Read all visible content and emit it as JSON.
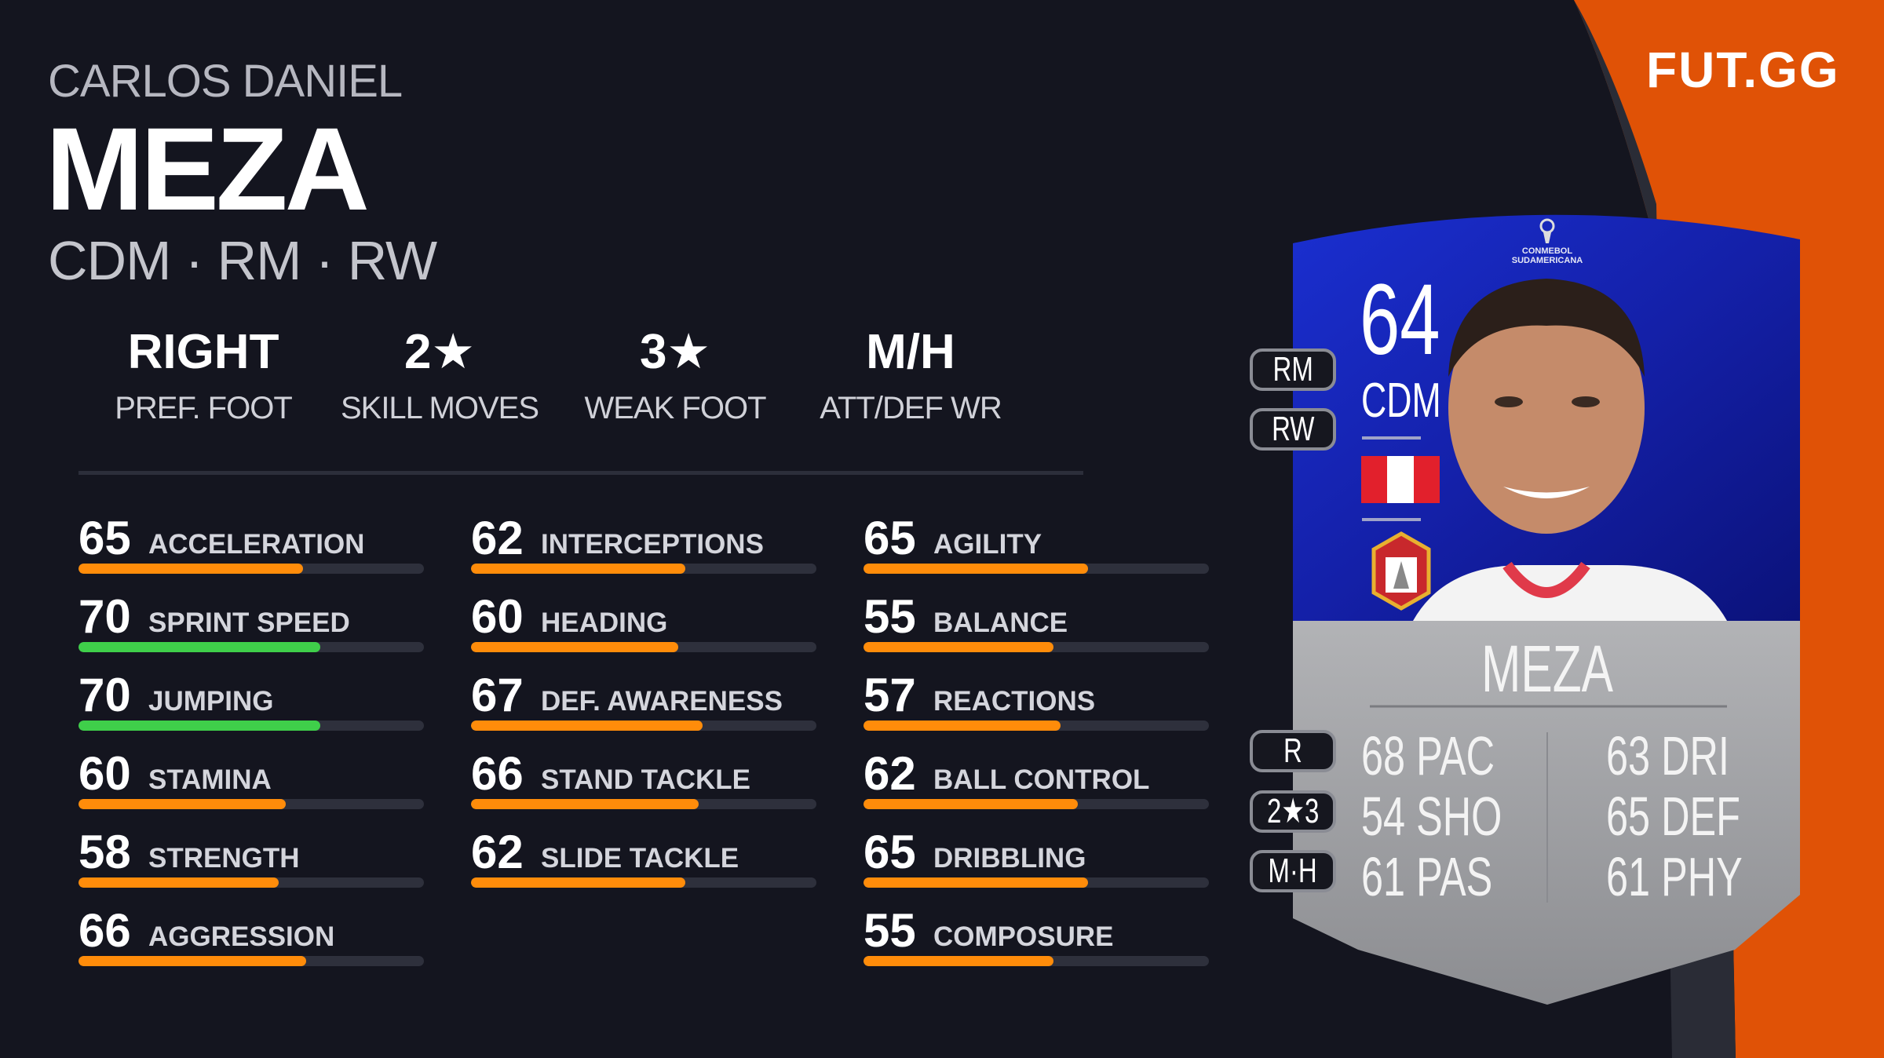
{
  "player": {
    "first_name": "CARLOS DANIEL",
    "last_name": "MEZA",
    "positions": "CDM · RM · RW"
  },
  "info": [
    {
      "value": "RIGHT",
      "label": "PREF. FOOT"
    },
    {
      "value": "2★",
      "label": "SKILL MOVES"
    },
    {
      "value": "3★",
      "label": "WEAK FOOT"
    },
    {
      "value": "M/H",
      "label": "ATT/DEF WR"
    }
  ],
  "colors": {
    "bar_default": "#ff8c0a",
    "bar_high": "#3fcf4a",
    "accent": "#e05206",
    "background": "#14151f"
  },
  "stats": [
    [
      {
        "value": "65",
        "label": "ACCELERATION",
        "pct": 65,
        "color": "orange"
      },
      {
        "value": "70",
        "label": "SPRINT SPEED",
        "pct": 70,
        "color": "green"
      },
      {
        "value": "70",
        "label": "JUMPING",
        "pct": 70,
        "color": "green"
      },
      {
        "value": "60",
        "label": "STAMINA",
        "pct": 60,
        "color": "orange"
      },
      {
        "value": "58",
        "label": "STRENGTH",
        "pct": 58,
        "color": "orange"
      },
      {
        "value": "66",
        "label": "AGGRESSION",
        "pct": 66,
        "color": "orange"
      }
    ],
    [
      {
        "value": "62",
        "label": "INTERCEPTIONS",
        "pct": 62,
        "color": "orange"
      },
      {
        "value": "60",
        "label": "HEADING",
        "pct": 60,
        "color": "orange"
      },
      {
        "value": "67",
        "label": "DEF. AWARENESS",
        "pct": 67,
        "color": "orange"
      },
      {
        "value": "66",
        "label": "STAND TACKLE",
        "pct": 66,
        "color": "orange"
      },
      {
        "value": "62",
        "label": "SLIDE TACKLE",
        "pct": 62,
        "color": "orange"
      }
    ],
    [
      {
        "value": "65",
        "label": "AGILITY",
        "pct": 65,
        "color": "orange"
      },
      {
        "value": "55",
        "label": "BALANCE",
        "pct": 55,
        "color": "orange"
      },
      {
        "value": "57",
        "label": "REACTIONS",
        "pct": 57,
        "color": "orange"
      },
      {
        "value": "62",
        "label": "BALL CONTROL",
        "pct": 62,
        "color": "orange"
      },
      {
        "value": "65",
        "label": "DRIBBLING",
        "pct": 65,
        "color": "orange"
      },
      {
        "value": "55",
        "label": "COMPOSURE",
        "pct": 55,
        "color": "orange"
      }
    ]
  ],
  "logo": "FUT.GG",
  "card": {
    "rating": "64",
    "position": "CDM",
    "alt_positions": [
      "RM",
      "RW"
    ],
    "name": "MEZA",
    "league_badge": "CONMEBOL SUDAMERICANA",
    "nation": "Peru",
    "club": "Ayacucho FC",
    "side_pills": [
      "R",
      "2★3",
      "M·H"
    ],
    "face_stats": [
      {
        "value": "68",
        "label": "PAC"
      },
      {
        "value": "54",
        "label": "SHO"
      },
      {
        "value": "61",
        "label": "PAS"
      },
      {
        "value": "63",
        "label": "DRI"
      },
      {
        "value": "65",
        "label": "DEF"
      },
      {
        "value": "61",
        "label": "PHY"
      }
    ]
  }
}
